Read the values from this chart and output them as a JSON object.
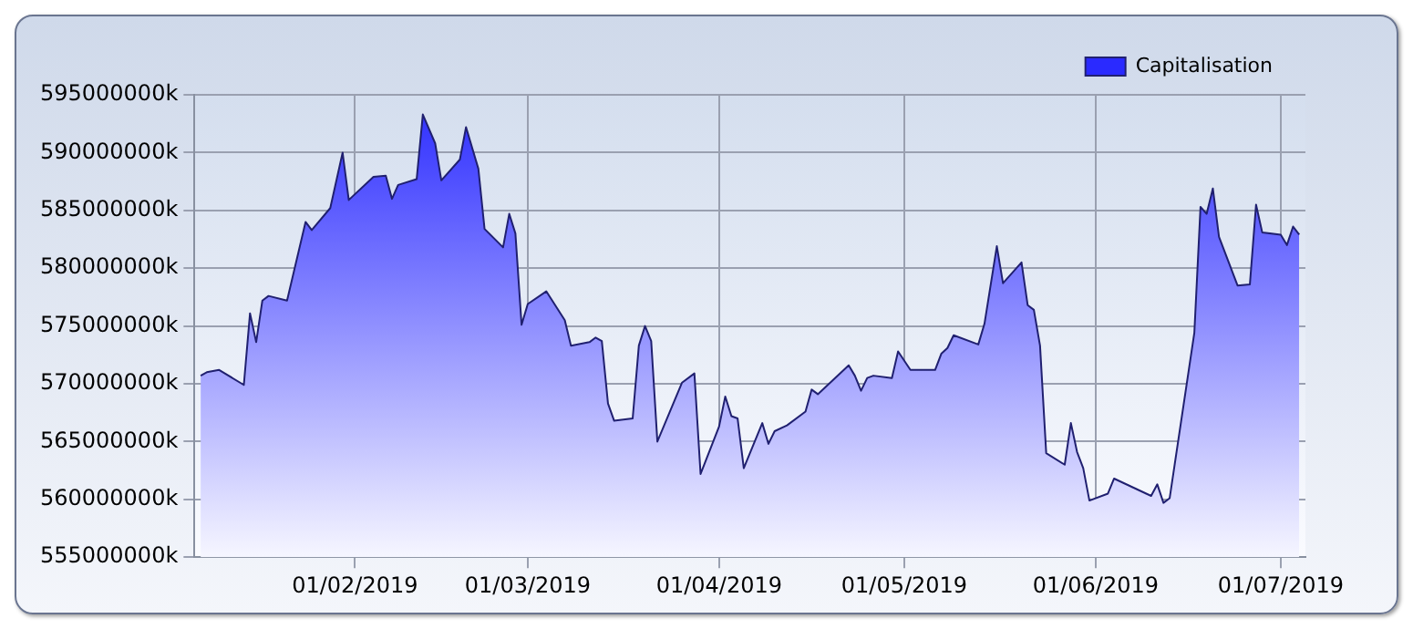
{
  "chart_data": {
    "type": "area",
    "x": [
      "2019-01-07",
      "2019-01-08",
      "2019-01-10",
      "2019-01-14",
      "2019-01-15",
      "2019-01-16",
      "2019-01-17",
      "2019-01-18",
      "2019-01-21",
      "2019-01-24",
      "2019-01-25",
      "2019-01-28",
      "2019-01-30",
      "2019-01-31",
      "2019-02-04",
      "2019-02-06",
      "2019-02-07",
      "2019-02-08",
      "2019-02-11",
      "2019-02-12",
      "2019-02-14",
      "2019-02-15",
      "2019-02-18",
      "2019-02-19",
      "2019-02-21",
      "2019-02-22",
      "2019-02-25",
      "2019-02-26",
      "2019-02-27",
      "2019-02-28",
      "2019-03-01",
      "2019-03-04",
      "2019-03-07",
      "2019-03-08",
      "2019-03-11",
      "2019-03-12",
      "2019-03-13",
      "2019-03-14",
      "2019-03-15",
      "2019-03-18",
      "2019-03-19",
      "2019-03-20",
      "2019-03-21",
      "2019-03-22",
      "2019-03-26",
      "2019-03-28",
      "2019-03-29",
      "2019-04-01",
      "2019-04-02",
      "2019-04-03",
      "2019-04-04",
      "2019-04-05",
      "2019-04-08",
      "2019-04-09",
      "2019-04-10",
      "2019-04-12",
      "2019-04-15",
      "2019-04-16",
      "2019-04-17",
      "2019-04-22",
      "2019-04-23",
      "2019-04-24",
      "2019-04-25",
      "2019-04-26",
      "2019-04-29",
      "2019-04-30",
      "2019-05-02",
      "2019-05-06",
      "2019-05-07",
      "2019-05-08",
      "2019-05-09",
      "2019-05-13",
      "2019-05-14",
      "2019-05-16",
      "2019-05-17",
      "2019-05-20",
      "2019-05-21",
      "2019-05-22",
      "2019-05-23",
      "2019-05-24",
      "2019-05-27",
      "2019-05-28",
      "2019-05-29",
      "2019-05-30",
      "2019-05-31",
      "2019-06-03",
      "2019-06-04",
      "2019-06-10",
      "2019-06-11",
      "2019-06-12",
      "2019-06-13",
      "2019-06-17",
      "2019-06-18",
      "2019-06-19",
      "2019-06-20",
      "2019-06-21",
      "2019-06-24",
      "2019-06-26",
      "2019-06-27",
      "2019-06-28",
      "2019-07-01",
      "2019-07-02",
      "2019-07-03",
      "2019-07-04"
    ],
    "series": [
      {
        "name": "Capitalisation",
        "color": "#2a2aff",
        "values": [
          570700000,
          571000000,
          571200000,
          569900000,
          576100000,
          573600000,
          577200000,
          577600000,
          577200000,
          584000000,
          583300000,
          585200000,
          590000000,
          585900000,
          587900000,
          588000000,
          586000000,
          587200000,
          587700000,
          593300000,
          590800000,
          587600000,
          589400000,
          592200000,
          588600000,
          583400000,
          581800000,
          584700000,
          583000000,
          575100000,
          576900000,
          578000000,
          575500000,
          573300000,
          573600000,
          574000000,
          573700000,
          568300000,
          566800000,
          567000000,
          573300000,
          575000000,
          573700000,
          565000000,
          570100000,
          570900000,
          562200000,
          566300000,
          568900000,
          567200000,
          567000000,
          562700000,
          566600000,
          564800000,
          565900000,
          566400000,
          567600000,
          569500000,
          569100000,
          571600000,
          570700000,
          569400000,
          570500000,
          570700000,
          570500000,
          572800000,
          571200000,
          571200000,
          572600000,
          573100000,
          574200000,
          573400000,
          575200000,
          581900000,
          578700000,
          580500000,
          576800000,
          576400000,
          573300000,
          564000000,
          563000000,
          566600000,
          564100000,
          562700000,
          559900000,
          560500000,
          561800000,
          560300000,
          561300000,
          559700000,
          560100000,
          574400000,
          585300000,
          584700000,
          586900000,
          582700000,
          578500000,
          578600000,
          585500000,
          583100000,
          582900000,
          582000000,
          583600000,
          582900000
        ]
      }
    ],
    "xlim": [
      "2019-01-06",
      "2019-07-05"
    ],
    "xticks": [
      {
        "value": "2019-02-01",
        "label": "01/02/2019"
      },
      {
        "value": "2019-03-01",
        "label": "01/03/2019"
      },
      {
        "value": "2019-04-01",
        "label": "01/04/2019"
      },
      {
        "value": "2019-05-01",
        "label": "01/05/2019"
      },
      {
        "value": "2019-06-01",
        "label": "01/06/2019"
      },
      {
        "value": "2019-07-01",
        "label": "01/07/2019"
      }
    ],
    "ylim": [
      555000000,
      595000000
    ],
    "yticks": [
      {
        "value": 555000000,
        "label": "555000000k"
      },
      {
        "value": 560000000,
        "label": "560000000k"
      },
      {
        "value": 565000000,
        "label": "565000000k"
      },
      {
        "value": 570000000,
        "label": "570000000k"
      },
      {
        "value": 575000000,
        "label": "575000000k"
      },
      {
        "value": 580000000,
        "label": "580000000k"
      },
      {
        "value": 585000000,
        "label": "585000000k"
      },
      {
        "value": 590000000,
        "label": "590000000k"
      },
      {
        "value": 595000000,
        "label": "595000000k"
      }
    ],
    "grid": true,
    "legend": "top right"
  }
}
